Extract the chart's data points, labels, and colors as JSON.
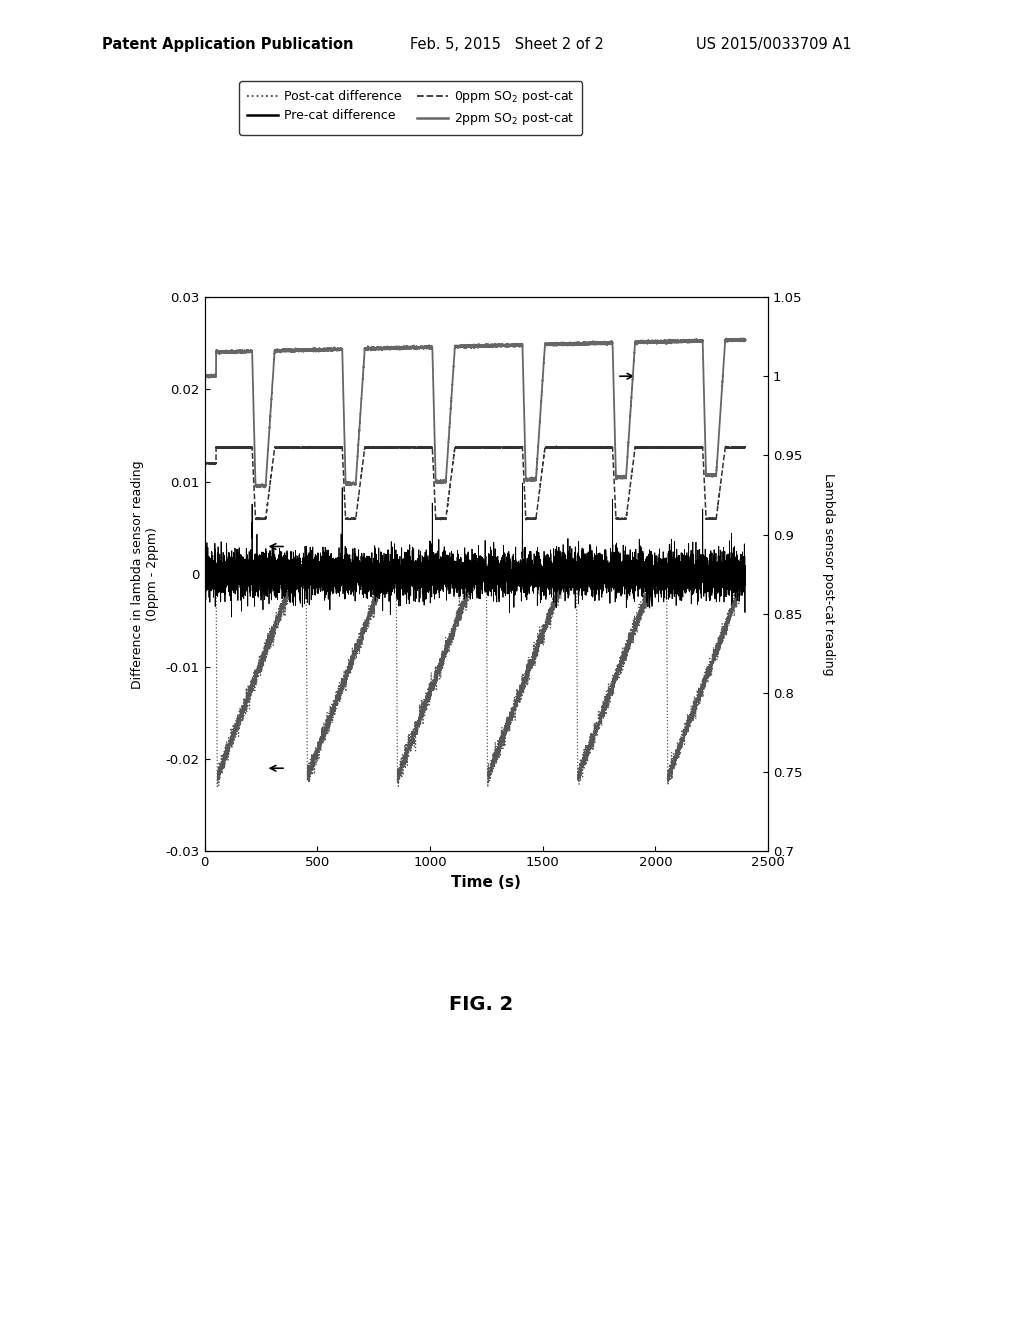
{
  "title_header": "Patent Application Publication",
  "date_header": "Feb. 5, 2015   Sheet 2 of 2",
  "patent_header": "US 2015/0033709 A1",
  "fig_label": "FIG. 2",
  "xlabel": "Time (s)",
  "ylabel_left": "Difference in lambda sensor reading\n(0ppm - 2ppm)",
  "ylabel_right": "Lambda sensor post-cat reading",
  "xlim": [
    0,
    2500
  ],
  "ylim_left": [
    -0.03,
    0.03
  ],
  "ylim_right": [
    0.7,
    1.05
  ],
  "xticks": [
    0,
    500,
    1000,
    1500,
    2000,
    2500
  ],
  "yticks_left": [
    -0.03,
    -0.02,
    -0.01,
    0,
    0.01,
    0.02,
    0.03
  ],
  "yticks_right": [
    0.7,
    0.75,
    0.8,
    0.85,
    0.9,
    0.95,
    1.0,
    1.05
  ],
  "background_color": "#ffffff"
}
